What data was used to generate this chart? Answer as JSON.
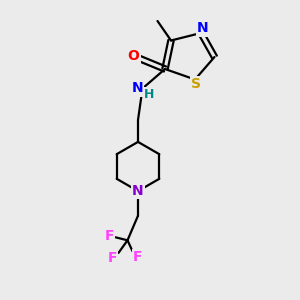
{
  "background_color": "#ebebeb",
  "bond_color": "#000000",
  "atoms": {
    "S": "#c8a000",
    "N_blue": "#0000ff",
    "N_purple": "#8800cc",
    "O": "#ff0000",
    "F": "#ff44ff"
  },
  "figsize": [
    3.0,
    3.0
  ],
  "dpi": 100,
  "xlim": [
    0,
    10
  ],
  "ylim": [
    0,
    10
  ]
}
